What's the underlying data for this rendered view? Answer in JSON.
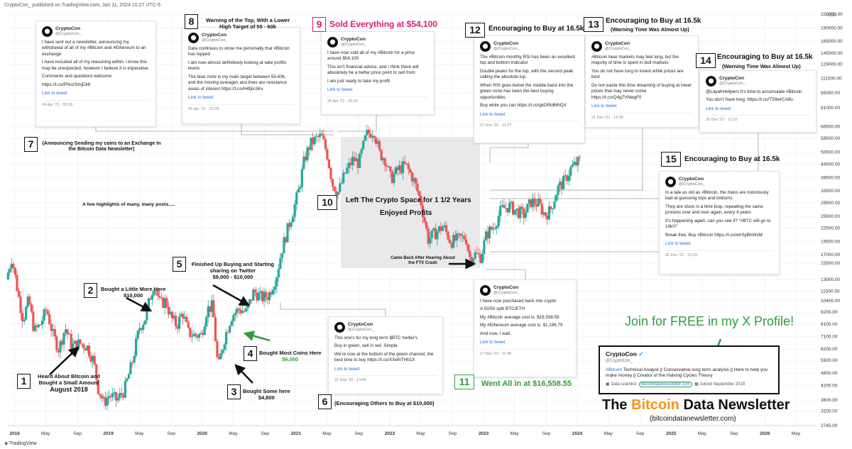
{
  "header": "CryptoCon_ published on TradingView.com, Jan 11, 2024 10:27 UTC-5",
  "currency": "USD",
  "footer_brand": "TradingView",
  "chart_data": {
    "type": "candlestick",
    "title": "",
    "xlabel": "",
    "ylabel": "",
    "yscale": "log",
    "y_ticks": [
      220000,
      190000,
      165000,
      145000,
      129000,
      111000,
      95000,
      81000,
      66500,
      58500,
      50500,
      44500,
      38500,
      33500,
      29500,
      25500,
      22500,
      19500,
      17000,
      15500,
      13000,
      11500,
      10400,
      9200,
      8100,
      7100,
      6200,
      5500,
      4800,
      4200,
      3600,
      3200,
      2745
    ],
    "y_tick_labels": [
      "220000.00",
      "190000.00",
      "165000.00",
      "145000.00",
      "129000.00",
      "111000.00",
      "95000.00",
      "81000.00",
      "66500.00",
      "58500.00",
      "50500.00",
      "44500.00",
      "38500.00",
      "33500.00",
      "29500.00",
      "25500.00",
      "22500.00",
      "19500.00",
      "17000.00",
      "15500.00",
      "13000.00",
      "11500.00",
      "10400.00",
      "9200.00",
      "8100.00",
      "7100.00",
      "6200.00",
      "5500.00",
      "4800.00",
      "4200.00",
      "3600.00",
      "3200.00",
      "2745.00"
    ],
    "x_tick_labels": [
      "2018",
      "May",
      "Sep",
      "2019",
      "May",
      "Sep",
      "2020",
      "May",
      "Sep",
      "2021",
      "May",
      "Sep",
      "2022",
      "May",
      "Sep",
      "2023",
      "May",
      "Sep",
      "2024",
      "May",
      "Sep",
      "2025",
      "May",
      "Sep",
      "2026",
      "May"
    ],
    "x_tick_dates": [
      2018.0,
      2018.33,
      2018.67,
      2019.0,
      2019.33,
      2019.67,
      2020.0,
      2020.33,
      2020.67,
      2021.0,
      2021.33,
      2021.67,
      2022.0,
      2022.33,
      2022.67,
      2023.0,
      2023.33,
      2023.67,
      2024.0,
      2024.33,
      2024.67,
      2025.0,
      2025.33,
      2025.67,
      2026.0,
      2026.33
    ],
    "price_path": [
      [
        2017.92,
        13000
      ],
      [
        2017.98,
        16500
      ],
      [
        2018.05,
        11000
      ],
      [
        2018.1,
        8500
      ],
      [
        2018.16,
        10500
      ],
      [
        2018.22,
        7500
      ],
      [
        2018.28,
        8000
      ],
      [
        2018.35,
        9500
      ],
      [
        2018.42,
        7200
      ],
      [
        2018.48,
        6200
      ],
      [
        2018.55,
        7800
      ],
      [
        2018.62,
        6400
      ],
      [
        2018.7,
        6600
      ],
      [
        2018.78,
        6400
      ],
      [
        2018.85,
        5500
      ],
      [
        2018.9,
        4100
      ],
      [
        2018.96,
        3500
      ],
      [
        2019.02,
        3800
      ],
      [
        2019.1,
        3600
      ],
      [
        2019.18,
        4000
      ],
      [
        2019.26,
        5300
      ],
      [
        2019.34,
        7800
      ],
      [
        2019.4,
        8600
      ],
      [
        2019.46,
        11000
      ],
      [
        2019.5,
        12500
      ],
      [
        2019.56,
        10000
      ],
      [
        2019.62,
        10400
      ],
      [
        2019.68,
        8600
      ],
      [
        2019.74,
        8000
      ],
      [
        2019.8,
        9200
      ],
      [
        2019.86,
        7400
      ],
      [
        2019.92,
        7200
      ],
      [
        2020.0,
        7200
      ],
      [
        2020.06,
        9500
      ],
      [
        2020.12,
        9800
      ],
      [
        2020.18,
        5000
      ],
      [
        2020.24,
        6800
      ],
      [
        2020.32,
        8800
      ],
      [
        2020.4,
        9500
      ],
      [
        2020.48,
        9200
      ],
      [
        2020.56,
        11500
      ],
      [
        2020.64,
        10700
      ],
      [
        2020.72,
        11000
      ],
      [
        2020.8,
        13500
      ],
      [
        2020.86,
        18000
      ],
      [
        2020.93,
        23000
      ],
      [
        2021.0,
        29000
      ],
      [
        2021.04,
        34000
      ],
      [
        2021.1,
        47000
      ],
      [
        2021.16,
        55000
      ],
      [
        2021.22,
        58000
      ],
      [
        2021.28,
        60000
      ],
      [
        2021.34,
        50000
      ],
      [
        2021.4,
        36000
      ],
      [
        2021.46,
        33000
      ],
      [
        2021.54,
        41000
      ],
      [
        2021.62,
        47000
      ],
      [
        2021.68,
        45000
      ],
      [
        2021.76,
        61000
      ],
      [
        2021.84,
        64000
      ],
      [
        2021.9,
        50000
      ],
      [
        2021.96,
        47000
      ],
      [
        2022.02,
        38000
      ],
      [
        2022.1,
        42000
      ],
      [
        2022.18,
        44000
      ],
      [
        2022.26,
        38000
      ],
      [
        2022.34,
        30000
      ],
      [
        2022.42,
        20000
      ],
      [
        2022.5,
        21500
      ],
      [
        2022.58,
        23000
      ],
      [
        2022.66,
        19500
      ],
      [
        2022.74,
        20000
      ],
      [
        2022.82,
        20500
      ],
      [
        2022.86,
        16500
      ],
      [
        2022.92,
        17000
      ],
      [
        2022.98,
        16600
      ],
      [
        2023.04,
        21000
      ],
      [
        2023.12,
        23000
      ],
      [
        2023.2,
        27500
      ],
      [
        2023.28,
        28500
      ],
      [
        2023.36,
        27000
      ],
      [
        2023.44,
        26000
      ],
      [
        2023.52,
        30000
      ],
      [
        2023.6,
        29000
      ],
      [
        2023.66,
        26000
      ],
      [
        2023.72,
        27000
      ],
      [
        2023.8,
        34500
      ],
      [
        2023.88,
        37500
      ],
      [
        2023.94,
        42500
      ],
      [
        2024.03,
        46000
      ]
    ]
  },
  "annotations": {
    "a1": {
      "num": "1",
      "text": "Heard About Bitcoin and Bought a Small Amount",
      "date": "August 2018"
    },
    "a2": {
      "num": "2",
      "text": "Bought a Little More Here",
      "price": "$10,000"
    },
    "a3": {
      "num": "3",
      "text": "Bought Some here",
      "price": "$4,800"
    },
    "a4": {
      "num": "4",
      "text": "Bought Most Coins Here",
      "price": "$6,000"
    },
    "a5": {
      "num": "5",
      "text": "Finished Up Buying and Starting sharing on Twitter",
      "price": "$9,000 - $10,000"
    },
    "a6": {
      "num": "6",
      "text": "(Encouraging Others to Buy at $10,000)"
    },
    "a7": {
      "num": "7",
      "text": "(Announcing Sending my coins to an Exchange in the Bitcoin Data Newsletter)"
    },
    "a8": {
      "num": "8",
      "text": "Warning of the Top, With a Lower High Target of 55 - 60k"
    },
    "a9": {
      "num": "9",
      "text": "Sold Everything at $54,100"
    },
    "a10": {
      "num": "10",
      "text": "Left The Crypto Space for 1 1/2 Years",
      "sub": "Enjoyed Profits"
    },
    "a11": {
      "num": "11",
      "text": "Went All in at $16,558.55"
    },
    "a12": {
      "num": "12",
      "text": "Encouraging to Buy at 16.5k"
    },
    "a13": {
      "num": "13",
      "text": "Encouraging to Buy at 16.5k",
      "sub": "(Warning Time Was Almost Up)"
    },
    "a14": {
      "num": "14",
      "text": "Encouraging to Buy at 16.5k",
      "sub": "(Warning Time Was Almost Up)"
    },
    "a15": {
      "num": "15",
      "text": "Encouraging to Buy at 16.5k"
    },
    "highlights": "A few highlights of many, many posts.....",
    "ftx": "Came Back After Hearing About the FTX Crash"
  },
  "tweets": {
    "t1": {
      "name": "CryptoCon",
      "handle": "@CryptoCon_",
      "paras": [
        "I have sent out a newsletter, announcing my withdrawal of all of my #Bitcoin and #Ethereum to an exchange",
        "I have included all of my reasoning within. I know this may be unexpected, however I believe it is imperative.",
        "Comments and questions welcome",
        " https://t.co/PNozSmjDk8"
      ],
      "link": "Link to tweet",
      "ts": "24 Apr '21 · 03:36"
    },
    "t2": {
      "name": "CryptoCon",
      "handle": "@CryptoCon_",
      "paras": [
        "Data continues to show me personally that #Bitcoin has topped",
        "I am now almost definitively looking at take profits levels",
        "The blue zone is my main target between 55-60k, and the moving averages and lines are resistance areas of interest https://t.co/H4fjiic3Kx"
      ],
      "link": "Link to tweet",
      "ts": "26 Apr '21 · 12:34"
    },
    "t3": {
      "name": "CryptoCon",
      "handle": "@CryptoCon_",
      "paras": [
        "I have now sold all of my #Bitcoin for a price around $54,100",
        "This isn't financial advice, and I think there will absolutely be a better price point to sell from.",
        "I am just ready to take my profit"
      ],
      "link": "Link to tweet",
      "ts": "29 Apr '21 · 00:20"
    },
    "t4": {
      "name": "CryptoCon",
      "handle": "@CryptoCon_",
      "paras": [
        "The #Bitcoin monthly RSI has been an excellent top and bottom indicator",
        "Double peaks for the top, with the second peak calling the absolute top",
        "When RSI goes below the middle band into the green zone has been the best buying opportunities",
        "Buy while you can https://t.co/gkDRldMhQV"
      ],
      "link": "Link to tweet",
      "ts": "27 Nov '22 · 11:37"
    },
    "t5": {
      "name": "CryptoCon",
      "handle": "@CryptoCon_",
      "paras": [
        "#Bitcoin bear markets may feel long, but the majority of time is spent in bull markets",
        "You do not have long to invest while prices are best",
        "Do not waste this time dreaming of buying at lower prices that may never come https://t.co/Q4g7VNwgF0"
      ],
      "link": "Link to tweet",
      "ts": "21 Dec '22 · 13:28"
    },
    "t6": {
      "name": "CryptoCon",
      "handle": "@CryptoCon_",
      "paras": [
        "@LayahHeilpern It's time to accumulate #Bitcoin",
        "You don't have long. https://t.co/TSIlwrCA9u"
      ],
      "link": "Link to tweet",
      "ts": "26 Dec '22 · 11:10"
    },
    "t7": {
      "name": "CryptoCon",
      "handle": "@CryptoCon_",
      "paras": [
        "In a tale as old as #Bitcoin, the mass are notoriously bad at guessing tops and bottoms",
        "They are stuck in a time loop, repeating the same process over and over again, every 4 years",
        "It's happening again, can you see it? \"#BTC will go to 10k!!!\"",
        "Break free, Buy #Bitcoin https://t.co/etrSyBhWsM"
      ],
      "link": "Link to tweet",
      "ts": "26 Dec '22 · 12:03"
    },
    "t8": {
      "name": "CryptoCon",
      "handle": "@CryptoCon_",
      "paras": [
        "I have now purchased back into crypto",
        "A 50/50 split BTC/ETH",
        "My #Bitcoin average cost is: $16,558.55",
        "My #Ethereum average cost is: $1,196.79",
        "And now, I wait."
      ],
      "link": "Link to tweet",
      "ts": "17 Nov '22 · 11:40"
    },
    "t9": {
      "name": "CryptoCon",
      "handle": "@CryptoCon_",
      "paras": [
        "This one's for my long term $BTC hodler's",
        "Buy in green, sell in red. Simple",
        "We're now at the bottom of the green channel, the best time to buy https://t.co/XXelhTHb1X"
      ],
      "link": "Link to tweet",
      "ts": "22 Sep '20 · 14:45"
    }
  },
  "promo": {
    "join": "Join for FREE in my X Profile!",
    "profile_name": "CryptoCon",
    "profile_handle": "@CryptoCon_",
    "bio_tag": "#Bitcoin",
    "bio": "Technical Analyst || Conservative long term analysis || Here to help you make money || Creator of the Halving Cycles Theory",
    "occupation": "Data scientist",
    "website": "bitcoindatanewsletter.com",
    "joined": "Joined September 2018",
    "title_pre": "The",
    "title_mid": "Bitcoin",
    "title_post": "Data Newsletter",
    "url": "(bitcoindatanewsletter.com)"
  },
  "colors": {
    "up": "#26a69a",
    "down": "#ef5350",
    "accent_pink": "#e0196e",
    "accent_green": "#2e9e3b",
    "orange": "#f7931a"
  }
}
